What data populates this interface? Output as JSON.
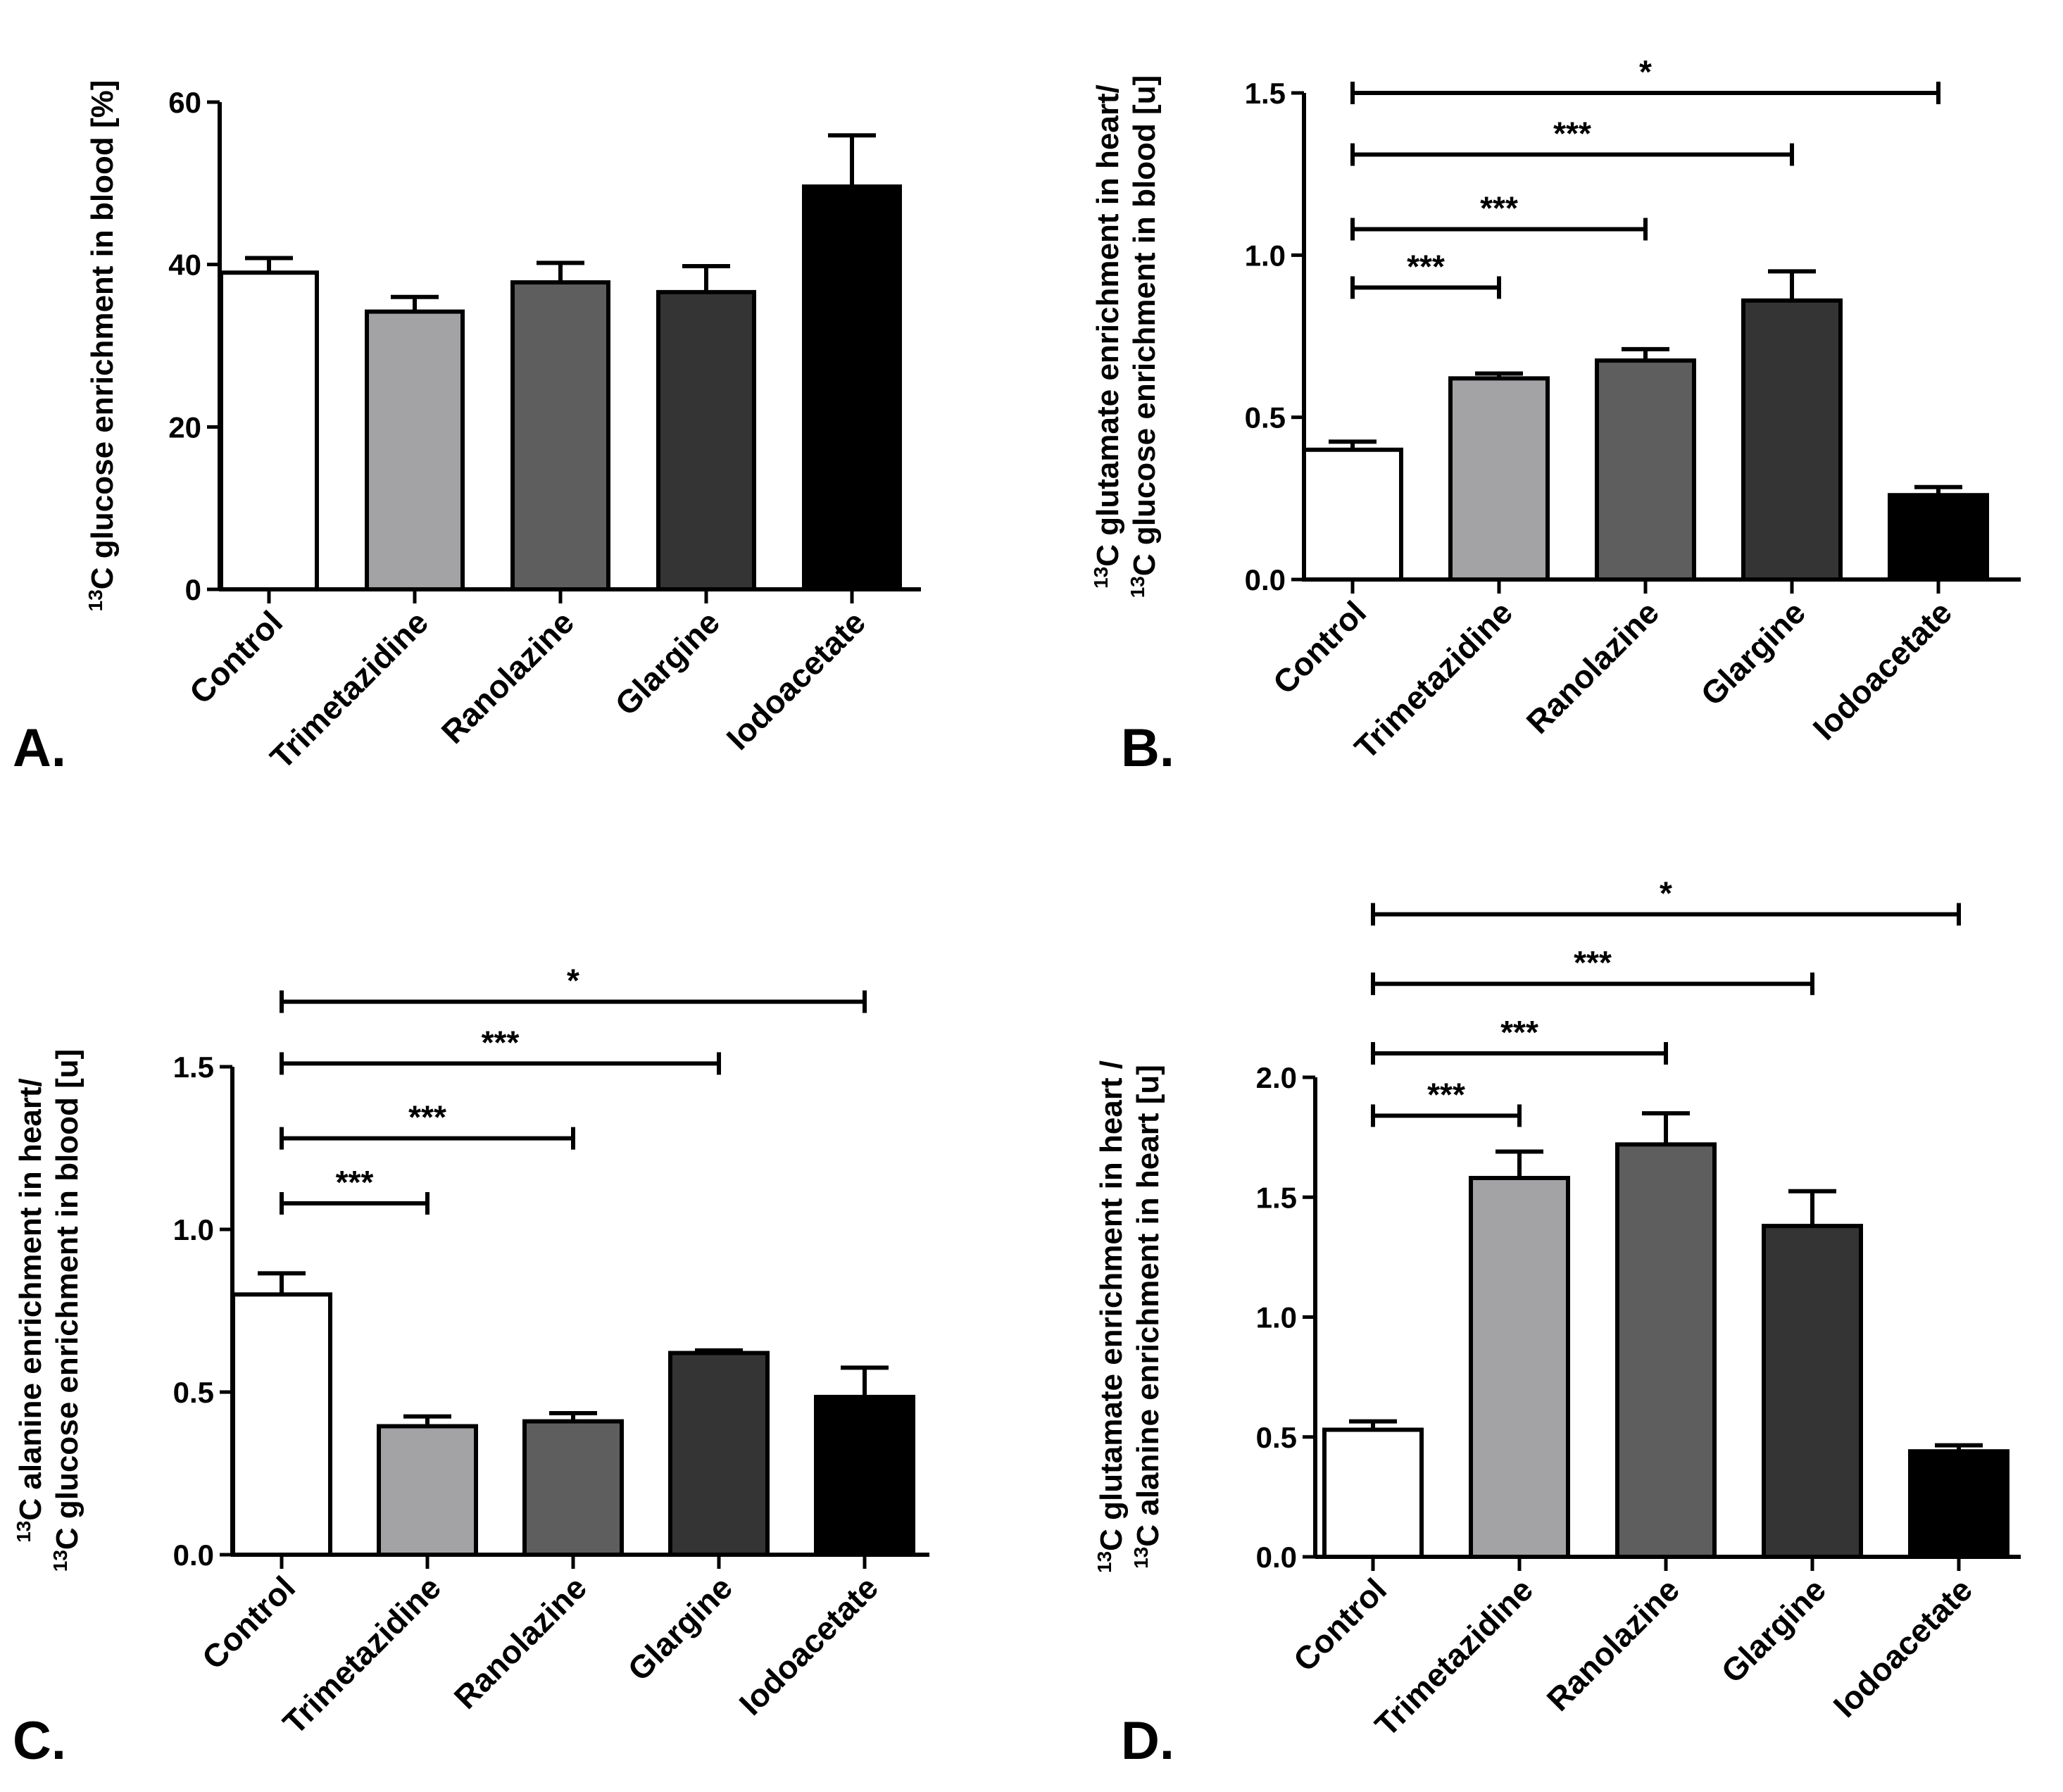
{
  "figure": {
    "panels": [
      {
        "panel_label": "A.",
        "ylabel_lines": [
          {
            "sup": "13",
            "text": "C glucose enrichment in blood [%]"
          }
        ]
      },
      {
        "panel_label": "B.",
        "ylabel_lines": [
          {
            "sup": "13",
            "text": "C glutamate enrichment in heart/"
          },
          {
            "sup": "13",
            "text": "C glucose enrichment in blood [u]"
          }
        ]
      },
      {
        "panel_label": "C.",
        "ylabel_lines": [
          {
            "sup": "13",
            "text": "C alanine enrichment in heart/"
          },
          {
            "sup": "13",
            "text": "C glucose enrichment in blood [u]"
          }
        ]
      },
      {
        "panel_label": "D.",
        "ylabel_lines": [
          {
            "sup": "13",
            "text": "C glutamate enrichment in heart /"
          },
          {
            "sup": "13",
            "text": "C alanine enrichment in heart [u]"
          }
        ]
      }
    ]
  },
  "chart_data": [
    {
      "type": "bar",
      "panel": "A.",
      "title": "",
      "ylabel": "13C glucose enrichment in blood [%]",
      "categories": [
        "Control",
        "Trimetazidine",
        "Ranolazine",
        "Glargine",
        "Iodoacetate"
      ],
      "values": [
        39,
        34.2,
        37.8,
        36.6,
        49.6
      ],
      "errors": [
        1.8,
        1.8,
        2.4,
        3.2,
        6.3
      ],
      "colors": [
        "#ffffff",
        "#a3a3a6",
        "#5e5e5e",
        "#343434",
        "#000000"
      ],
      "ylim": [
        0,
        60
      ],
      "yticks": [
        "0",
        "20",
        "40",
        "60"
      ],
      "significance": []
    },
    {
      "type": "bar",
      "panel": "B.",
      "title": "",
      "ylabel": "13C glutamate enrichment in heart/ 13C glucose enrichment in blood [u]",
      "categories": [
        "Control",
        "Trimetazidine",
        "Ranolazine",
        "Glargine",
        "Iodoacetate"
      ],
      "values": [
        0.4,
        0.62,
        0.675,
        0.86,
        0.26
      ],
      "errors": [
        0.025,
        0.015,
        0.035,
        0.09,
        0.025
      ],
      "colors": [
        "#ffffff",
        "#a3a3a6",
        "#5e5e5e",
        "#343434",
        "#000000"
      ],
      "ylim": [
        0,
        1.5
      ],
      "yticks": [
        "0.0",
        "0.5",
        "1.0",
        "1.5"
      ],
      "significance": [
        {
          "from": 0,
          "to": 1,
          "level": 0.9,
          "label": "***"
        },
        {
          "from": 0,
          "to": 2,
          "level": 1.08,
          "label": "***"
        },
        {
          "from": 0,
          "to": 3,
          "level": 1.31,
          "label": "***"
        },
        {
          "from": 0,
          "to": 4,
          "level": 1.5,
          "label": "*"
        }
      ]
    },
    {
      "type": "bar",
      "panel": "C.",
      "title": "",
      "ylabel": "13C alanine enrichment in heart/ 13C glucose enrichment in blood [u]",
      "categories": [
        "Control",
        "Trimetazidine",
        "Ranolazine",
        "Glargine",
        "Iodoacetate"
      ],
      "values": [
        0.8,
        0.395,
        0.41,
        0.62,
        0.485
      ],
      "errors": [
        0.065,
        0.03,
        0.025,
        0.008,
        0.09
      ],
      "colors": [
        "#ffffff",
        "#a3a3a6",
        "#5e5e5e",
        "#343434",
        "#000000"
      ],
      "ylim": [
        0,
        1.5
      ],
      "yticks": [
        "0.0",
        "0.5",
        "1.0",
        "1.5"
      ],
      "significance": [
        {
          "from": 0,
          "to": 1,
          "level": 1.08,
          "label": "***"
        },
        {
          "from": 0,
          "to": 2,
          "level": 1.28,
          "label": "***"
        },
        {
          "from": 0,
          "to": 3,
          "level": 1.51,
          "label": "***"
        },
        {
          "from": 0,
          "to": 4,
          "level": 1.7,
          "label": "*"
        }
      ]
    },
    {
      "type": "bar",
      "panel": "D.",
      "title": "",
      "ylabel": "13C glutamate enrichment in heart / 13C alanine enrichment in heart [u]",
      "categories": [
        "Control",
        "Trimetazidine",
        "Ranolazine",
        "Glargine",
        "Iodoacetate"
      ],
      "values": [
        0.53,
        1.58,
        1.72,
        1.38,
        0.44
      ],
      "errors": [
        0.035,
        0.11,
        0.13,
        0.145,
        0.025
      ],
      "colors": [
        "#ffffff",
        "#a3a3a6",
        "#5e5e5e",
        "#343434",
        "#000000"
      ],
      "ylim": [
        0,
        2.0
      ],
      "yticks": [
        "0.0",
        "0.5",
        "1.0",
        "1.5",
        "2.0"
      ],
      "significance": [
        {
          "from": 0,
          "to": 1,
          "level": 1.84,
          "label": "***"
        },
        {
          "from": 0,
          "to": 2,
          "level": 2.1,
          "label": "***"
        },
        {
          "from": 0,
          "to": 3,
          "level": 2.39,
          "label": "***"
        },
        {
          "from": 0,
          "to": 4,
          "level": 2.68,
          "label": "*"
        }
      ]
    }
  ]
}
